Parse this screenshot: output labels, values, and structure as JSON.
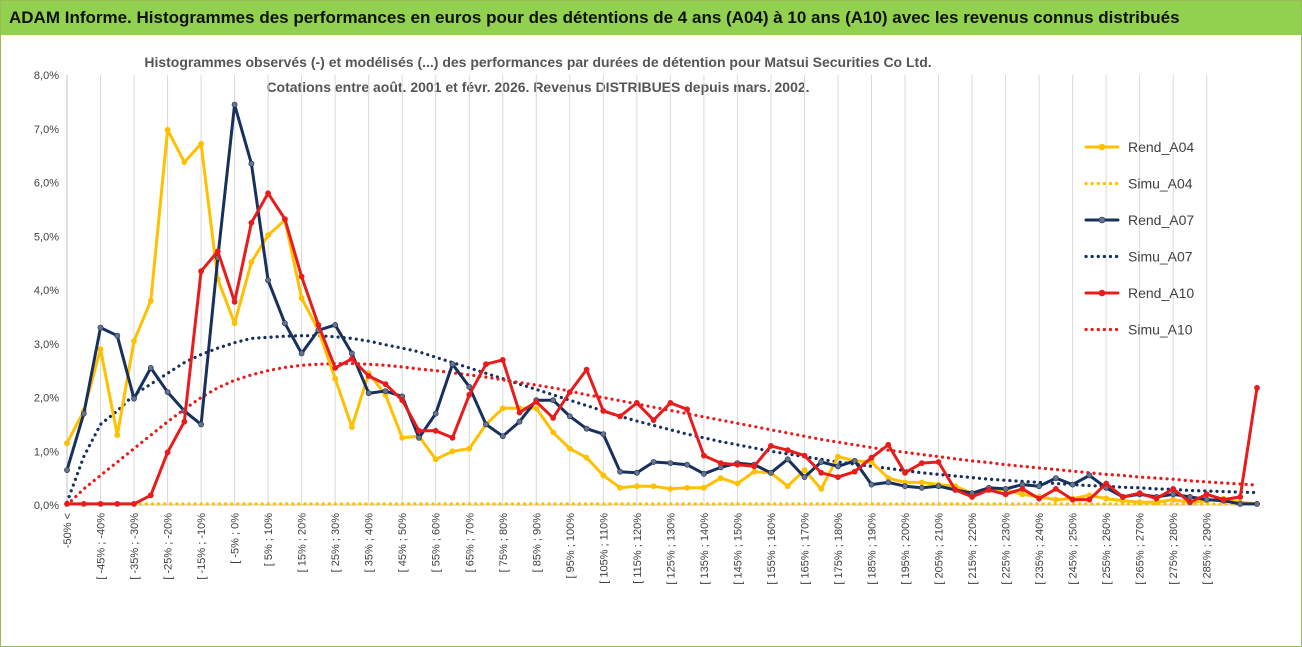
{
  "banner": {
    "title": "ADAM Informe. Histogrammes des performances en euros pour des détentions de 4 ans (A04) à 10 ans (A10) avec les revenus connus distribués"
  },
  "chart_data": {
    "type": "line",
    "title": "Histogrammes observés (-) et modélisés (...) des performances par durées de détention pour Matsui Securities Co Ltd.",
    "subtitle": "Cotations entre août. 2001 et févr. 2026. Revenus DISTRIBUES depuis mars. 2002.",
    "ylim": [
      0,
      8
    ],
    "yticks": [
      0,
      1,
      2,
      3,
      4,
      5,
      6,
      7,
      8
    ],
    "ytick_labels": [
      "0,0%",
      "1,0%",
      "2,0%",
      "3,0%",
      "4,0%",
      "5,0%",
      "6,0%",
      "7,0%",
      "8,0%"
    ],
    "x_labels": [
      "-50% <",
      "[ -45% ; -40%",
      "[ -35% ; -30%",
      "[ -25% ; -20%",
      "[ -15% ; -10%",
      "[ -5% ; 0%",
      "[ 5% ; 10%",
      "[ 15% ; 20%",
      "[ 25% ; 30%",
      "[ 35% ; 40%",
      "[ 45% ; 50%",
      "[ 55% ; 60%",
      "[ 65% ; 70%",
      "[ 75% ; 80%",
      "[ 85% ; 90%",
      "[ 95% ; 100%",
      "[ 105% ; 110%",
      "[ 115% ; 120%",
      "[ 125% ; 130%",
      "[ 135% ; 140%",
      "[ 145% ; 150%",
      "[ 155% ; 160%",
      "[ 165% ; 170%",
      "[ 175% ; 180%",
      "[ 185% ; 190%",
      "[ 195% ; 200%",
      "[ 205% ; 210%",
      "[ 215% ; 220%",
      "[ 225% ; 230%",
      "[ 235% ; 240%",
      "[ 245% ; 250%",
      "[ 255% ; 260%",
      "[ 265% ; 270%",
      "[ 275% ; 280%",
      "[ 285% ; 290%"
    ],
    "grid": "vertical",
    "legend_position": "right",
    "series": [
      {
        "name": "Rend_A04",
        "style": "solid",
        "markers": true,
        "color": "#ffc000",
        "values": [
          1.15,
          1.75,
          2.9,
          1.3,
          3.05,
          3.8,
          6.98,
          6.38,
          6.72,
          4.2,
          3.38,
          4.52,
          5.02,
          5.3,
          3.85,
          3.25,
          2.35,
          1.45,
          2.45,
          2.05,
          1.25,
          1.28,
          0.85,
          1.0,
          1.05,
          1.5,
          1.8,
          1.8,
          1.8,
          1.35,
          1.05,
          0.88,
          0.55,
          0.32,
          0.35,
          0.35,
          0.3,
          0.32,
          0.32,
          0.5,
          0.4,
          0.62,
          0.6,
          0.35,
          0.65,
          0.3,
          0.9,
          0.82,
          0.8,
          0.5,
          0.42,
          0.42,
          0.38,
          0.35,
          0.22,
          0.28,
          0.28,
          0.2,
          0.15,
          0.1,
          0.12,
          0.18,
          0.12,
          0.08,
          0.05,
          0.05,
          0.1,
          0.05,
          0.08,
          0.12,
          0.05,
          0.02
        ]
      },
      {
        "name": "Simu_A04",
        "style": "dotted",
        "markers": false,
        "color": "#ffc000",
        "values": [
          0.02,
          0.02,
          0.02,
          0.02,
          0.02,
          0.02,
          0.02,
          0.02,
          0.02,
          0.02,
          0.02,
          0.02,
          0.02,
          0.02,
          0.02,
          0.02,
          0.02,
          0.02,
          0.02,
          0.02,
          0.02,
          0.02,
          0.02,
          0.02,
          0.02,
          0.02,
          0.02,
          0.02,
          0.02,
          0.02,
          0.02,
          0.02,
          0.02,
          0.02,
          0.02,
          0.02,
          0.02,
          0.02,
          0.02,
          0.02,
          0.02,
          0.02,
          0.02,
          0.02,
          0.02,
          0.02,
          0.02,
          0.02,
          0.02,
          0.02,
          0.02,
          0.02,
          0.02,
          0.02,
          0.02,
          0.02,
          0.02,
          0.02,
          0.02,
          0.02,
          0.02,
          0.02,
          0.02,
          0.02,
          0.02,
          0.02,
          0.02,
          0.02,
          0.02,
          0.02,
          0.02,
          0.02
        ]
      },
      {
        "name": "Rend_A07",
        "style": "solid",
        "markers": true,
        "color": "#17305e",
        "values": [
          0.65,
          1.7,
          3.3,
          3.15,
          1.98,
          2.55,
          2.1,
          1.75,
          1.5,
          4.6,
          7.45,
          6.35,
          4.18,
          3.38,
          2.82,
          3.25,
          3.35,
          2.82,
          2.08,
          2.12,
          2.02,
          1.25,
          1.7,
          2.62,
          2.2,
          1.5,
          1.28,
          1.55,
          1.95,
          1.95,
          1.65,
          1.42,
          1.32,
          0.62,
          0.6,
          0.8,
          0.78,
          0.75,
          0.58,
          0.7,
          0.78,
          0.75,
          0.6,
          0.85,
          0.52,
          0.8,
          0.72,
          0.82,
          0.38,
          0.42,
          0.35,
          0.32,
          0.35,
          0.28,
          0.22,
          0.32,
          0.3,
          0.38,
          0.35,
          0.5,
          0.38,
          0.55,
          0.32,
          0.15,
          0.2,
          0.15,
          0.2,
          0.15,
          0.1,
          0.08,
          0.02,
          0.02
        ]
      },
      {
        "name": "Simu_A07",
        "style": "dotted",
        "markers": false,
        "color": "#17305e",
        "values": [
          0.05,
          0.9,
          1.5,
          1.75,
          2.05,
          2.25,
          2.45,
          2.65,
          2.8,
          2.92,
          3.02,
          3.1,
          3.12,
          3.14,
          3.15,
          3.15,
          3.13,
          3.1,
          3.05,
          2.98,
          2.92,
          2.85,
          2.75,
          2.65,
          2.55,
          2.45,
          2.35,
          2.25,
          2.15,
          2.05,
          1.95,
          1.85,
          1.75,
          1.65,
          1.56,
          1.48,
          1.4,
          1.32,
          1.25,
          1.18,
          1.12,
          1.06,
          1.0,
          0.95,
          0.9,
          0.85,
          0.8,
          0.76,
          0.72,
          0.68,
          0.64,
          0.6,
          0.57,
          0.54,
          0.51,
          0.48,
          0.46,
          0.44,
          0.42,
          0.4,
          0.38,
          0.36,
          0.35,
          0.33,
          0.32,
          0.3,
          0.29,
          0.27,
          0.26,
          0.25,
          0.24,
          0.23
        ]
      },
      {
        "name": "Rend_A10",
        "style": "solid",
        "markers": true,
        "color": "#e81c1c",
        "values": [
          0.02,
          0.02,
          0.02,
          0.02,
          0.02,
          0.18,
          0.98,
          1.55,
          4.35,
          4.72,
          3.78,
          5.25,
          5.8,
          5.32,
          4.25,
          3.35,
          2.55,
          2.72,
          2.4,
          2.25,
          1.95,
          1.38,
          1.38,
          1.25,
          2.05,
          2.62,
          2.7,
          1.72,
          1.92,
          1.62,
          2.1,
          2.52,
          1.75,
          1.65,
          1.9,
          1.58,
          1.9,
          1.78,
          0.92,
          0.78,
          0.75,
          0.72,
          1.1,
          1.02,
          0.92,
          0.6,
          0.52,
          0.62,
          0.88,
          1.12,
          0.6,
          0.78,
          0.8,
          0.28,
          0.15,
          0.28,
          0.2,
          0.3,
          0.12,
          0.3,
          0.1,
          0.1,
          0.4,
          0.15,
          0.22,
          0.12,
          0.3,
          0.05,
          0.2,
          0.1,
          0.15,
          2.18
        ]
      },
      {
        "name": "Simu_A10",
        "style": "dotted",
        "markers": false,
        "color": "#e81c1c",
        "values": [
          0.0,
          0.3,
          0.55,
          0.8,
          1.05,
          1.3,
          1.55,
          1.78,
          2.0,
          2.18,
          2.32,
          2.42,
          2.5,
          2.56,
          2.6,
          2.62,
          2.63,
          2.63,
          2.62,
          2.6,
          2.57,
          2.53,
          2.5,
          2.46,
          2.42,
          2.38,
          2.33,
          2.28,
          2.23,
          2.18,
          2.12,
          2.05,
          2.0,
          1.94,
          1.88,
          1.82,
          1.76,
          1.7,
          1.64,
          1.58,
          1.52,
          1.46,
          1.4,
          1.34,
          1.28,
          1.22,
          1.17,
          1.12,
          1.07,
          1.02,
          0.98,
          0.94,
          0.9,
          0.86,
          0.82,
          0.79,
          0.75,
          0.72,
          0.69,
          0.66,
          0.63,
          0.6,
          0.57,
          0.55,
          0.52,
          0.5,
          0.48,
          0.45,
          0.43,
          0.41,
          0.39,
          0.37
        ]
      }
    ]
  }
}
